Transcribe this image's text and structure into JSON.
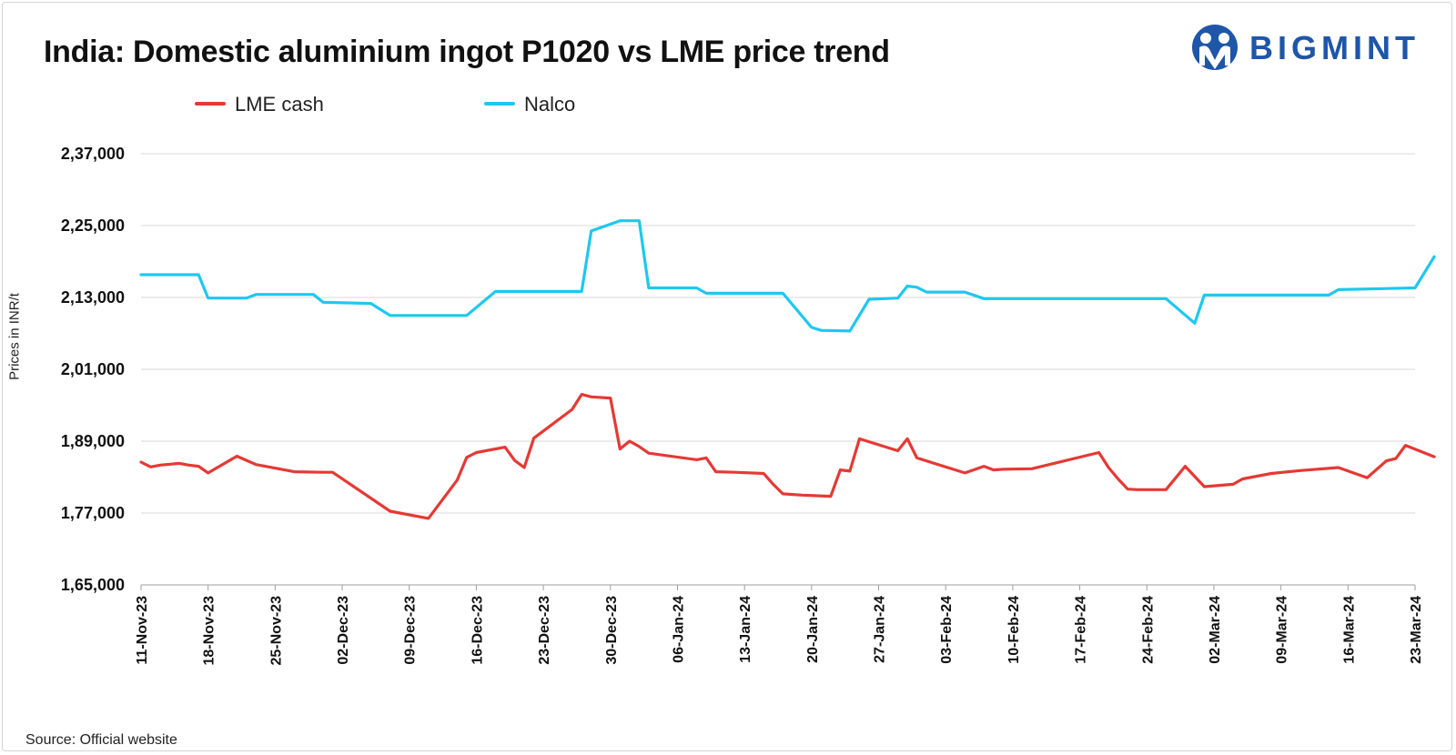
{
  "title": "India: Domestic aluminium ingot P1020 vs LME price trend",
  "brand": {
    "name": "BIGMINT",
    "color": "#1e56a8"
  },
  "source": "Source: Official website",
  "chart_data": {
    "type": "line",
    "ylabel": "Prices in INR/t",
    "ylim": [
      165000,
      237000
    ],
    "yticks": [
      165000,
      177000,
      189000,
      201000,
      213000,
      225000,
      237000
    ],
    "ytick_labels": [
      "1,65,000",
      "1,77,000",
      "1,89,000",
      "2,01,000",
      "2,13,000",
      "2,25,000",
      "2,37,000"
    ],
    "xlim": [
      "2023-11-11",
      "2024-03-23"
    ],
    "xticks": [
      "2023-11-11",
      "2023-11-18",
      "2023-11-25",
      "2023-12-02",
      "2023-12-09",
      "2023-12-16",
      "2023-12-23",
      "2023-12-30",
      "2024-01-06",
      "2024-01-13",
      "2024-01-20",
      "2024-01-27",
      "2024-02-03",
      "2024-02-10",
      "2024-02-17",
      "2024-02-24",
      "2024-03-02",
      "2024-03-09",
      "2024-03-16",
      "2024-03-23"
    ],
    "xtick_labels": [
      "11-Nov-23",
      "18-Nov-23",
      "25-Nov-23",
      "02-Dec-23",
      "09-Dec-23",
      "16-Dec-23",
      "23-Dec-23",
      "30-Dec-23",
      "06-Jan-24",
      "13-Jan-24",
      "20-Jan-24",
      "27-Jan-24",
      "03-Feb-24",
      "10-Feb-24",
      "17-Feb-24",
      "24-Feb-24",
      "02-Mar-24",
      "09-Mar-24",
      "16-Mar-24",
      "23-Mar-24"
    ],
    "grid": true,
    "legend_position": "top-left",
    "series": [
      {
        "name": "LME cash",
        "color": "#e53935",
        "x": [
          "2023-11-11",
          "2023-11-12",
          "2023-11-13",
          "2023-11-15",
          "2023-11-16",
          "2023-11-17",
          "2023-11-18",
          "2023-11-21",
          "2023-11-23",
          "2023-11-27",
          "2023-11-30",
          "2023-12-01",
          "2023-12-07",
          "2023-12-11",
          "2023-12-14",
          "2023-12-15",
          "2023-12-16",
          "2023-12-19",
          "2023-12-20",
          "2023-12-21",
          "2023-12-22",
          "2023-12-26",
          "2023-12-27",
          "2023-12-28",
          "2023-12-30",
          "2023-12-31",
          "2024-01-01",
          "2024-01-02",
          "2024-01-03",
          "2024-01-08",
          "2024-01-09",
          "2024-01-10",
          "2024-01-12",
          "2024-01-15",
          "2024-01-16",
          "2024-01-17",
          "2024-01-19",
          "2024-01-22",
          "2024-01-23",
          "2024-01-24",
          "2024-01-25",
          "2024-01-29",
          "2024-01-30",
          "2024-01-31",
          "2024-02-05",
          "2024-02-07",
          "2024-02-08",
          "2024-02-09",
          "2024-02-12",
          "2024-02-19",
          "2024-02-20",
          "2024-02-21",
          "2024-02-22",
          "2024-02-23",
          "2024-02-26",
          "2024-02-28",
          "2024-03-01",
          "2024-03-04",
          "2024-03-05",
          "2024-03-08",
          "2024-03-11",
          "2024-03-15",
          "2024-03-18",
          "2024-03-20",
          "2024-03-21",
          "2024-03-22",
          "2024-03-25"
        ],
        "y": [
          185500,
          184700,
          185000,
          185300,
          185000,
          184800,
          183700,
          186500,
          185100,
          183900,
          183800,
          183800,
          177300,
          176100,
          182500,
          186300,
          187100,
          188000,
          185800,
          184600,
          189500,
          194300,
          196800,
          196400,
          196200,
          187700,
          189000,
          188100,
          187000,
          185900,
          186200,
          183900,
          183800,
          183600,
          181800,
          180200,
          180000,
          179800,
          184200,
          184000,
          189400,
          187400,
          189400,
          186200,
          183700,
          184800,
          184200,
          184300,
          184400,
          187100,
          184600,
          182700,
          181000,
          180900,
          180900,
          184800,
          181400,
          181800,
          182700,
          183600,
          184100,
          184600,
          182900,
          185700,
          186100,
          188300,
          186400
        ]
      },
      {
        "name": "Nalco",
        "color": "#1ec8ef",
        "x": [
          "2023-11-11",
          "2023-11-17",
          "2023-11-18",
          "2023-11-22",
          "2023-11-23",
          "2023-11-29",
          "2023-11-30",
          "2023-12-05",
          "2023-12-07",
          "2023-12-15",
          "2023-12-18",
          "2023-12-27",
          "2023-12-28",
          "2023-12-31",
          "2024-01-02",
          "2024-01-03",
          "2024-01-04",
          "2024-01-08",
          "2024-01-09",
          "2024-01-16",
          "2024-01-17",
          "2024-01-20",
          "2024-01-21",
          "2024-01-24",
          "2024-01-26",
          "2024-01-29",
          "2024-01-30",
          "2024-01-31",
          "2024-02-01",
          "2024-02-05",
          "2024-02-07",
          "2024-02-08",
          "2024-02-23",
          "2024-02-26",
          "2024-02-29",
          "2024-03-01",
          "2024-03-14",
          "2024-03-15",
          "2024-03-23",
          "2024-03-25"
        ],
        "y": [
          216800,
          216800,
          212900,
          212900,
          213500,
          213500,
          212200,
          212000,
          210000,
          210000,
          214000,
          214000,
          224100,
          225800,
          225800,
          214600,
          214600,
          214600,
          213700,
          213700,
          213700,
          208000,
          207500,
          207400,
          212700,
          212900,
          214900,
          214700,
          213900,
          213900,
          212800,
          212800,
          212800,
          212800,
          208700,
          213400,
          213400,
          214300,
          214600,
          219800
        ]
      }
    ]
  }
}
